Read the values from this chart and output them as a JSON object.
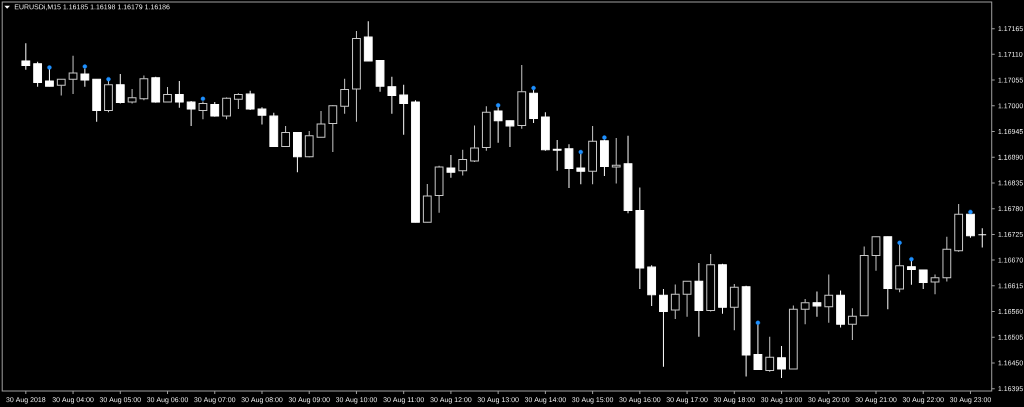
{
  "chart_data": {
    "type": "candlestick",
    "title": "EURUSDi,M15 1.16185 1.16198 1.16179 1.16186",
    "x": [
      "2018-08-30T03:00",
      "2018-08-30T03:15",
      "2018-08-30T03:30",
      "2018-08-30T03:45",
      "2018-08-30T04:00",
      "2018-08-30T04:15",
      "2018-08-30T04:30",
      "2018-08-30T04:45",
      "2018-08-30T05:00",
      "2018-08-30T05:15",
      "2018-08-30T05:30",
      "2018-08-30T05:45",
      "2018-08-30T06:00",
      "2018-08-30T06:15",
      "2018-08-30T06:30",
      "2018-08-30T06:45",
      "2018-08-30T07:00",
      "2018-08-30T07:15",
      "2018-08-30T07:30",
      "2018-08-30T07:45",
      "2018-08-30T08:00",
      "2018-08-30T08:15",
      "2018-08-30T08:30",
      "2018-08-30T08:45",
      "2018-08-30T09:00",
      "2018-08-30T09:15",
      "2018-08-30T09:30",
      "2018-08-30T09:45",
      "2018-08-30T10:00",
      "2018-08-30T10:15",
      "2018-08-30T10:30",
      "2018-08-30T10:45",
      "2018-08-30T11:00",
      "2018-08-30T11:15",
      "2018-08-30T11:30",
      "2018-08-30T11:45",
      "2018-08-30T12:00",
      "2018-08-30T12:15",
      "2018-08-30T12:30",
      "2018-08-30T12:45",
      "2018-08-30T13:00",
      "2018-08-30T13:15",
      "2018-08-30T13:30",
      "2018-08-30T13:45",
      "2018-08-30T14:00",
      "2018-08-30T14:15",
      "2018-08-30T14:30",
      "2018-08-30T14:45",
      "2018-08-30T15:00",
      "2018-08-30T15:15",
      "2018-08-30T15:30",
      "2018-08-30T15:45",
      "2018-08-30T16:00",
      "2018-08-30T16:15",
      "2018-08-30T16:30",
      "2018-08-30T16:45",
      "2018-08-30T17:00",
      "2018-08-30T17:15",
      "2018-08-30T17:30",
      "2018-08-30T17:45",
      "2018-08-30T18:00",
      "2018-08-30T18:15",
      "2018-08-30T18:30",
      "2018-08-30T18:45",
      "2018-08-30T19:00",
      "2018-08-30T19:15",
      "2018-08-30T19:30",
      "2018-08-30T19:45",
      "2018-08-30T20:00",
      "2018-08-30T20:15",
      "2018-08-30T20:30",
      "2018-08-30T20:45",
      "2018-08-30T21:00",
      "2018-08-30T21:15",
      "2018-08-30T21:30",
      "2018-08-30T21:45",
      "2018-08-30T22:00",
      "2018-08-30T22:15",
      "2018-08-30T22:30",
      "2018-08-30T22:45",
      "2018-08-30T23:00",
      "2018-08-30T23:15"
    ],
    "ohlc": [
      [
        1.17096,
        1.17134,
        1.17077,
        1.17086
      ],
      [
        1.1709,
        1.17094,
        1.17041,
        1.1705
      ],
      [
        1.17053,
        1.17079,
        1.17042,
        1.17042
      ],
      [
        1.17044,
        1.17057,
        1.17022,
        1.17057
      ],
      [
        1.17057,
        1.17107,
        1.17025,
        1.1707
      ],
      [
        1.17068,
        1.1708,
        1.17041,
        1.17055
      ],
      [
        1.17057,
        1.17057,
        1.16966,
        1.1699
      ],
      [
        1.1699,
        1.17054,
        1.16986,
        1.17045
      ],
      [
        1.17045,
        1.17068,
        1.17005,
        1.17007
      ],
      [
        1.17008,
        1.17036,
        1.17005,
        1.17017
      ],
      [
        1.17015,
        1.17065,
        1.17012,
        1.17058
      ],
      [
        1.1706,
        1.17062,
        1.17007,
        1.17008
      ],
      [
        1.17008,
        1.1704,
        1.17008,
        1.17024
      ],
      [
        1.17024,
        1.17053,
        1.16996,
        1.17008
      ],
      [
        1.17008,
        1.1701,
        1.16957,
        1.16993
      ],
      [
        1.1699,
        1.17009,
        1.16971,
        1.17005
      ],
      [
        1.17003,
        1.17008,
        1.16977,
        1.16978
      ],
      [
        1.16978,
        1.17018,
        1.16971,
        1.17016
      ],
      [
        1.17014,
        1.17027,
        1.16993,
        1.17024
      ],
      [
        1.17025,
        1.17032,
        1.16991,
        1.16993
      ],
      [
        1.16993,
        1.16997,
        1.1696,
        1.1698
      ],
      [
        1.16978,
        1.16985,
        1.16912,
        1.16913
      ],
      [
        1.16913,
        1.16957,
        1.16912,
        1.16943
      ],
      [
        1.16943,
        1.16943,
        1.16858,
        1.16891
      ],
      [
        1.16891,
        1.16946,
        1.1689,
        1.16936
      ],
      [
        1.16933,
        1.16989,
        1.16933,
        1.16961
      ],
      [
        1.16962,
        1.17001,
        1.16901,
        1.17
      ],
      [
        1.16999,
        1.17058,
        1.16983,
        1.17035
      ],
      [
        1.17036,
        1.1716,
        1.16966,
        1.17144
      ],
      [
        1.17147,
        1.17181,
        1.17096,
        1.17096
      ],
      [
        1.17097,
        1.17098,
        1.1703,
        1.17042
      ],
      [
        1.17041,
        1.17062,
        1.16983,
        1.17022
      ],
      [
        1.17023,
        1.17045,
        1.16938,
        1.17005
      ],
      [
        1.17008,
        1.17012,
        1.16751,
        1.16751
      ],
      [
        1.16751,
        1.16833,
        1.16751,
        1.16807
      ],
      [
        1.16808,
        1.16872,
        1.16771,
        1.16869
      ],
      [
        1.16867,
        1.16895,
        1.16846,
        1.16858
      ],
      [
        1.16861,
        1.16906,
        1.16851,
        1.16885
      ],
      [
        1.16882,
        1.16958,
        1.1688,
        1.1691
      ],
      [
        1.16911,
        1.16999,
        1.16904,
        1.16986
      ],
      [
        1.16989,
        1.16997,
        1.16921,
        1.16968
      ],
      [
        1.16968,
        1.16968,
        1.16912,
        1.16957
      ],
      [
        1.16958,
        1.17087,
        1.16951,
        1.1703
      ],
      [
        1.17027,
        1.17034,
        1.16963,
        1.16973
      ],
      [
        1.16976,
        1.16986,
        1.16904,
        1.16906
      ],
      [
        1.16907,
        1.16927,
        1.16861,
        1.16905
      ],
      [
        1.16908,
        1.16918,
        1.16824,
        1.16866
      ],
      [
        1.16867,
        1.16897,
        1.16832,
        1.1686
      ],
      [
        1.1686,
        1.16957,
        1.16832,
        1.16924
      ],
      [
        1.16925,
        1.16928,
        1.1685,
        1.1687
      ],
      [
        1.16869,
        1.16931,
        1.16834,
        1.16873
      ],
      [
        1.16876,
        1.16936,
        1.1677,
        1.16776
      ],
      [
        1.16776,
        1.16825,
        1.16608,
        1.16653
      ],
      [
        1.16655,
        1.16659,
        1.16572,
        1.16596
      ],
      [
        1.16595,
        1.16608,
        1.16442,
        1.1656
      ],
      [
        1.16563,
        1.16618,
        1.16544,
        1.16597
      ],
      [
        1.16597,
        1.16625,
        1.16549,
        1.16625
      ],
      [
        1.16625,
        1.16664,
        1.16506,
        1.16562
      ],
      [
        1.16562,
        1.16683,
        1.1656,
        1.1666
      ],
      [
        1.1666,
        1.16662,
        1.16555,
        1.16569
      ],
      [
        1.16569,
        1.16619,
        1.1652,
        1.16612
      ],
      [
        1.16613,
        1.16615,
        1.16421,
        1.16467
      ],
      [
        1.16468,
        1.16533,
        1.16436,
        1.16436
      ],
      [
        1.16434,
        1.16506,
        1.16431,
        1.16462
      ],
      [
        1.16461,
        1.16486,
        1.16418,
        1.16437
      ],
      [
        1.16437,
        1.16573,
        1.16437,
        1.16565
      ],
      [
        1.16565,
        1.16587,
        1.16533,
        1.16579
      ],
      [
        1.16579,
        1.16603,
        1.16549,
        1.16572
      ],
      [
        1.1657,
        1.16639,
        1.16536,
        1.16595
      ],
      [
        1.16595,
        1.16605,
        1.16526,
        1.16533
      ],
      [
        1.16533,
        1.16567,
        1.16499,
        1.1655
      ],
      [
        1.16551,
        1.16699,
        1.16551,
        1.1668
      ],
      [
        1.1668,
        1.1672,
        1.16647,
        1.1672
      ],
      [
        1.1672,
        1.1672,
        1.16565,
        1.16609
      ],
      [
        1.16608,
        1.16704,
        1.16601,
        1.16658
      ],
      [
        1.16656,
        1.16668,
        1.16617,
        1.1665
      ],
      [
        1.16649,
        1.16649,
        1.16608,
        1.16622
      ],
      [
        1.16623,
        1.16639,
        1.16597,
        1.16632
      ],
      [
        1.16632,
        1.1672,
        1.16624,
        1.16693
      ],
      [
        1.1669,
        1.1679,
        1.16688,
        1.16768
      ],
      [
        1.16768,
        1.1677,
        1.16718,
        1.16722
      ],
      [
        1.16724,
        1.16738,
        1.16697,
        1.16724
      ]
    ],
    "series": [
      {
        "type": "scatter",
        "marker": "circle",
        "color": "#1e90ff",
        "x": [
          "2018-08-30T03:30",
          "2018-08-30T04:15",
          "2018-08-30T04:45",
          "2018-08-30T06:45",
          "2018-08-30T13:00",
          "2018-08-30T13:45",
          "2018-08-30T14:45",
          "2018-08-30T15:15",
          "2018-08-30T18:30",
          "2018-08-30T21:30",
          "2018-08-30T21:45",
          "2018-08-30T23:00"
        ],
        "values": [
          1.17082,
          1.17084,
          1.17057,
          1.17015,
          1.17001,
          1.17038,
          1.16901,
          1.16932,
          1.16536,
          1.16707,
          1.16672,
          1.16773
        ]
      }
    ],
    "xlim": [
      "2018-08-30T02:30",
      "2018-08-30T23:27"
    ],
    "xticks": [
      {
        "value": "2018-08-30T03:00",
        "label": "30 Aug 2018"
      },
      {
        "value": "2018-08-30T04:00",
        "label": "30 Aug 04:00"
      },
      {
        "value": "2018-08-30T05:00",
        "label": "30 Aug 05:00"
      },
      {
        "value": "2018-08-30T06:00",
        "label": "30 Aug 06:00"
      },
      {
        "value": "2018-08-30T07:00",
        "label": "30 Aug 07:00"
      },
      {
        "value": "2018-08-30T08:00",
        "label": "30 Aug 08:00"
      },
      {
        "value": "2018-08-30T09:00",
        "label": "30 Aug 09:00"
      },
      {
        "value": "2018-08-30T10:00",
        "label": "30 Aug 10:00"
      },
      {
        "value": "2018-08-30T11:00",
        "label": "30 Aug 11:00"
      },
      {
        "value": "2018-08-30T12:00",
        "label": "30 Aug 12:00"
      },
      {
        "value": "2018-08-30T13:00",
        "label": "30 Aug 13:00"
      },
      {
        "value": "2018-08-30T14:00",
        "label": "30 Aug 14:00"
      },
      {
        "value": "2018-08-30T15:00",
        "label": "30 Aug 15:00"
      },
      {
        "value": "2018-08-30T16:00",
        "label": "30 Aug 16:00"
      },
      {
        "value": "2018-08-30T17:00",
        "label": "30 Aug 17:00"
      },
      {
        "value": "2018-08-30T18:00",
        "label": "30 Aug 18:00"
      },
      {
        "value": "2018-08-30T19:00",
        "label": "30 Aug 19:00"
      },
      {
        "value": "2018-08-30T20:00",
        "label": "30 Aug 20:00"
      },
      {
        "value": "2018-08-30T21:00",
        "label": "30 Aug 21:00"
      },
      {
        "value": "2018-08-30T22:00",
        "label": "30 Aug 22:00"
      },
      {
        "value": "2018-08-30T23:00",
        "label": "30 Aug 23:00"
      }
    ],
    "ylim": [
      1.1639,
      1.17222
    ],
    "yticks": [
      1.17165,
      {
        "value": 1.1711,
        "label": "1.17110"
      },
      1.17055,
      {
        "value": 1.17,
        "label": "1.17000"
      },
      1.16945,
      {
        "value": 1.1689,
        "label": "1.16890"
      },
      1.16835,
      {
        "value": 1.1678,
        "label": "1.16780"
      },
      1.16725,
      {
        "value": 1.1667,
        "label": "1.16670"
      },
      1.16615,
      {
        "value": 1.1656,
        "label": "1.16560"
      },
      1.16505,
      {
        "value": 1.1645,
        "label": "1.16450"
      },
      1.16395
    ]
  }
}
